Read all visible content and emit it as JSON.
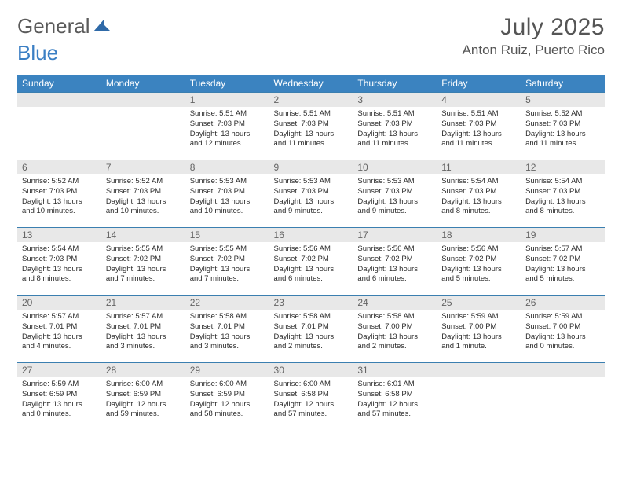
{
  "logo": {
    "text1": "General",
    "text2": "Blue"
  },
  "title": "July 2025",
  "location": "Anton Ruiz, Puerto Rico",
  "colors": {
    "header_bg": "#3b83c0",
    "header_fg": "#ffffff",
    "daybar_bg": "#e8e8e8",
    "daybar_border": "#3b7fb0",
    "text": "#333333",
    "title_color": "#555555"
  },
  "day_headers": [
    "Sunday",
    "Monday",
    "Tuesday",
    "Wednesday",
    "Thursday",
    "Friday",
    "Saturday"
  ],
  "weeks": [
    [
      {
        "n": "",
        "body": ""
      },
      {
        "n": "",
        "body": ""
      },
      {
        "n": "1",
        "body": "Sunrise: 5:51 AM\nSunset: 7:03 PM\nDaylight: 13 hours and 12 minutes."
      },
      {
        "n": "2",
        "body": "Sunrise: 5:51 AM\nSunset: 7:03 PM\nDaylight: 13 hours and 11 minutes."
      },
      {
        "n": "3",
        "body": "Sunrise: 5:51 AM\nSunset: 7:03 PM\nDaylight: 13 hours and 11 minutes."
      },
      {
        "n": "4",
        "body": "Sunrise: 5:51 AM\nSunset: 7:03 PM\nDaylight: 13 hours and 11 minutes."
      },
      {
        "n": "5",
        "body": "Sunrise: 5:52 AM\nSunset: 7:03 PM\nDaylight: 13 hours and 11 minutes."
      }
    ],
    [
      {
        "n": "6",
        "body": "Sunrise: 5:52 AM\nSunset: 7:03 PM\nDaylight: 13 hours and 10 minutes."
      },
      {
        "n": "7",
        "body": "Sunrise: 5:52 AM\nSunset: 7:03 PM\nDaylight: 13 hours and 10 minutes."
      },
      {
        "n": "8",
        "body": "Sunrise: 5:53 AM\nSunset: 7:03 PM\nDaylight: 13 hours and 10 minutes."
      },
      {
        "n": "9",
        "body": "Sunrise: 5:53 AM\nSunset: 7:03 PM\nDaylight: 13 hours and 9 minutes."
      },
      {
        "n": "10",
        "body": "Sunrise: 5:53 AM\nSunset: 7:03 PM\nDaylight: 13 hours and 9 minutes."
      },
      {
        "n": "11",
        "body": "Sunrise: 5:54 AM\nSunset: 7:03 PM\nDaylight: 13 hours and 8 minutes."
      },
      {
        "n": "12",
        "body": "Sunrise: 5:54 AM\nSunset: 7:03 PM\nDaylight: 13 hours and 8 minutes."
      }
    ],
    [
      {
        "n": "13",
        "body": "Sunrise: 5:54 AM\nSunset: 7:03 PM\nDaylight: 13 hours and 8 minutes."
      },
      {
        "n": "14",
        "body": "Sunrise: 5:55 AM\nSunset: 7:02 PM\nDaylight: 13 hours and 7 minutes."
      },
      {
        "n": "15",
        "body": "Sunrise: 5:55 AM\nSunset: 7:02 PM\nDaylight: 13 hours and 7 minutes."
      },
      {
        "n": "16",
        "body": "Sunrise: 5:56 AM\nSunset: 7:02 PM\nDaylight: 13 hours and 6 minutes."
      },
      {
        "n": "17",
        "body": "Sunrise: 5:56 AM\nSunset: 7:02 PM\nDaylight: 13 hours and 6 minutes."
      },
      {
        "n": "18",
        "body": "Sunrise: 5:56 AM\nSunset: 7:02 PM\nDaylight: 13 hours and 5 minutes."
      },
      {
        "n": "19",
        "body": "Sunrise: 5:57 AM\nSunset: 7:02 PM\nDaylight: 13 hours and 5 minutes."
      }
    ],
    [
      {
        "n": "20",
        "body": "Sunrise: 5:57 AM\nSunset: 7:01 PM\nDaylight: 13 hours and 4 minutes."
      },
      {
        "n": "21",
        "body": "Sunrise: 5:57 AM\nSunset: 7:01 PM\nDaylight: 13 hours and 3 minutes."
      },
      {
        "n": "22",
        "body": "Sunrise: 5:58 AM\nSunset: 7:01 PM\nDaylight: 13 hours and 3 minutes."
      },
      {
        "n": "23",
        "body": "Sunrise: 5:58 AM\nSunset: 7:01 PM\nDaylight: 13 hours and 2 minutes."
      },
      {
        "n": "24",
        "body": "Sunrise: 5:58 AM\nSunset: 7:00 PM\nDaylight: 13 hours and 2 minutes."
      },
      {
        "n": "25",
        "body": "Sunrise: 5:59 AM\nSunset: 7:00 PM\nDaylight: 13 hours and 1 minute."
      },
      {
        "n": "26",
        "body": "Sunrise: 5:59 AM\nSunset: 7:00 PM\nDaylight: 13 hours and 0 minutes."
      }
    ],
    [
      {
        "n": "27",
        "body": "Sunrise: 5:59 AM\nSunset: 6:59 PM\nDaylight: 13 hours and 0 minutes."
      },
      {
        "n": "28",
        "body": "Sunrise: 6:00 AM\nSunset: 6:59 PM\nDaylight: 12 hours and 59 minutes."
      },
      {
        "n": "29",
        "body": "Sunrise: 6:00 AM\nSunset: 6:59 PM\nDaylight: 12 hours and 58 minutes."
      },
      {
        "n": "30",
        "body": "Sunrise: 6:00 AM\nSunset: 6:58 PM\nDaylight: 12 hours and 57 minutes."
      },
      {
        "n": "31",
        "body": "Sunrise: 6:01 AM\nSunset: 6:58 PM\nDaylight: 12 hours and 57 minutes."
      },
      {
        "n": "",
        "body": ""
      },
      {
        "n": "",
        "body": ""
      }
    ]
  ]
}
